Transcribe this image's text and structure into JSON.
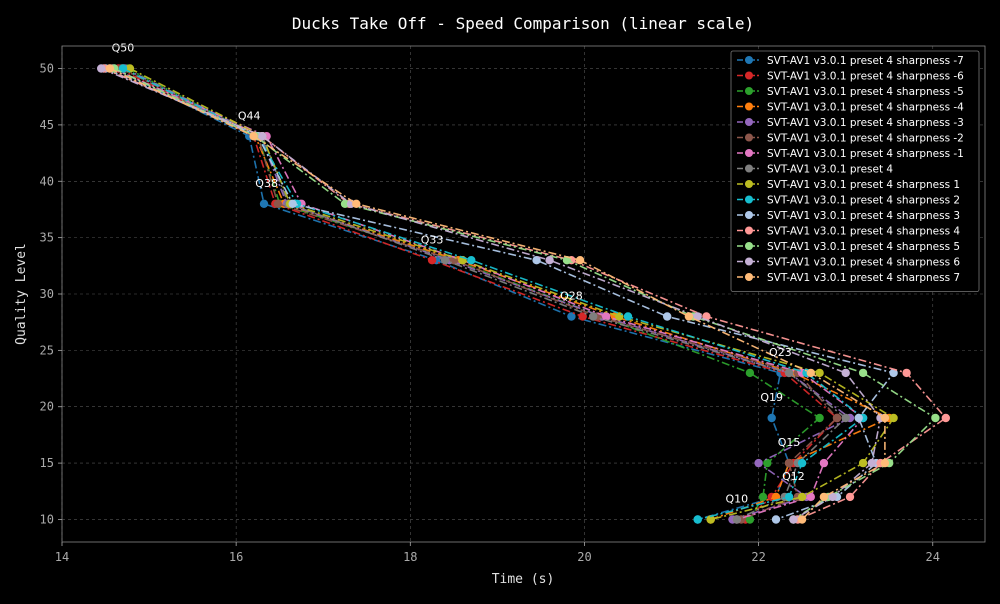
{
  "chart_data": {
    "type": "line",
    "title": "Ducks Take Off - Speed Comparison (linear scale)",
    "xlabel": "Time (s)",
    "ylabel": "Quality Level",
    "xlim": [
      14.0,
      24.6
    ],
    "ylim": [
      8.0,
      52.0
    ],
    "xticks": [
      14,
      16,
      18,
      20,
      22,
      24
    ],
    "yticks": [
      10,
      15,
      20,
      25,
      30,
      35,
      40,
      45,
      50
    ],
    "grid": true,
    "legend_position": "top-right",
    "quality_levels": [
      50,
      44,
      38,
      33,
      28,
      23,
      19,
      15,
      12,
      10
    ],
    "annotations": [
      {
        "text": "Q50",
        "x": 14.7,
        "y": 51.5
      },
      {
        "text": "Q44",
        "x": 16.15,
        "y": 45.5
      },
      {
        "text": "Q38",
        "x": 16.35,
        "y": 39.5
      },
      {
        "text": "Q33",
        "x": 18.25,
        "y": 34.5
      },
      {
        "text": "Q28",
        "x": 19.85,
        "y": 29.5
      },
      {
        "text": "Q23",
        "x": 22.25,
        "y": 24.5
      },
      {
        "text": "Q19",
        "x": 22.15,
        "y": 20.5
      },
      {
        "text": "Q15",
        "x": 22.35,
        "y": 16.5
      },
      {
        "text": "Q12",
        "x": 22.4,
        "y": 13.5
      },
      {
        "text": "Q10",
        "x": 21.75,
        "y": 11.5
      }
    ],
    "series": [
      {
        "name": "SVT-AV1 v3.0.1 preset 4 sharpness -7",
        "color": "#1f77b4",
        "x": [
          14.6,
          16.15,
          16.32,
          18.3,
          19.85,
          22.25,
          22.15,
          22.35,
          22.2,
          21.3
        ]
      },
      {
        "name": "SVT-AV1 v3.0.1 preset 4 sharpness -6",
        "color": "#d62728",
        "x": [
          14.65,
          16.2,
          16.45,
          18.25,
          19.98,
          22.3,
          22.9,
          22.4,
          22.15,
          21.85
        ]
      },
      {
        "name": "SVT-AV1 v3.0.1 preset 4 sharpness -5",
        "color": "#2ca02c",
        "x": [
          14.75,
          16.25,
          16.5,
          18.5,
          20.2,
          21.9,
          22.7,
          22.1,
          22.05,
          21.9
        ]
      },
      {
        "name": "SVT-AV1 v3.0.1 preset 4 sharpness -4",
        "color": "#ff7f0e",
        "x": [
          14.7,
          16.22,
          16.55,
          18.55,
          20.35,
          22.4,
          23.5,
          22.35,
          22.2,
          21.45
        ]
      },
      {
        "name": "SVT-AV1 v3.0.1 preset 4 sharpness -3",
        "color": "#9467bd",
        "x": [
          14.72,
          16.28,
          16.58,
          18.45,
          20.2,
          22.35,
          23.05,
          22.0,
          22.55,
          21.7
        ]
      },
      {
        "name": "SVT-AV1 v3.0.1 preset 4 sharpness -2",
        "color": "#8c564b",
        "x": [
          14.68,
          16.25,
          16.48,
          18.5,
          20.15,
          22.45,
          22.9,
          22.35,
          22.45,
          21.8
        ]
      },
      {
        "name": "SVT-AV1 v3.0.1 preset 4 sharpness -1",
        "color": "#e377c2",
        "x": [
          14.58,
          16.35,
          16.75,
          18.6,
          20.25,
          22.5,
          23.2,
          22.75,
          22.6,
          21.75
        ]
      },
      {
        "name": "SVT-AV1 v3.0.1 preset 4",
        "color": "#7f7f7f",
        "x": [
          14.55,
          16.3,
          16.6,
          18.4,
          20.1,
          22.35,
          23.0,
          22.45,
          22.3,
          21.75
        ]
      },
      {
        "name": "SVT-AV1 v3.0.1 preset 4 sharpness 1",
        "color": "#bcbd22",
        "x": [
          14.78,
          16.3,
          16.62,
          18.6,
          20.4,
          22.7,
          23.55,
          23.2,
          22.5,
          21.45
        ]
      },
      {
        "name": "SVT-AV1 v3.0.1 preset 4 sharpness 2",
        "color": "#17becf",
        "x": [
          14.7,
          16.25,
          16.7,
          18.7,
          20.5,
          22.55,
          23.2,
          22.5,
          22.35,
          21.3
        ]
      },
      {
        "name": "SVT-AV1 v3.0.1 preset 4 sharpness 3",
        "color": "#aec7e8",
        "x": [
          14.5,
          16.25,
          16.65,
          19.45,
          20.95,
          23.55,
          23.15,
          23.35,
          22.9,
          22.2
        ]
      },
      {
        "name": "SVT-AV1 v3.0.1 preset 4 sharpness 4",
        "color": "#ff9896",
        "x": [
          14.48,
          16.3,
          17.3,
          19.85,
          21.4,
          23.7,
          24.15,
          23.4,
          23.05,
          22.45
        ]
      },
      {
        "name": "SVT-AV1 v3.0.1 preset 4 sharpness 5",
        "color": "#98df8a",
        "x": [
          14.6,
          16.22,
          17.25,
          19.8,
          21.25,
          23.2,
          24.03,
          23.5,
          22.8,
          22.4
        ]
      },
      {
        "name": "SVT-AV1 v3.0.1 preset 4 sharpness 6",
        "color": "#c5b0d5",
        "x": [
          14.45,
          16.3,
          17.32,
          19.6,
          21.3,
          23.0,
          23.4,
          23.3,
          22.85,
          22.4
        ]
      },
      {
        "name": "SVT-AV1 v3.0.1 preset 4 sharpness 7",
        "color": "#ffbb78",
        "x": [
          14.55,
          16.2,
          17.38,
          19.95,
          21.2,
          22.6,
          23.45,
          23.45,
          22.75,
          22.5
        ]
      }
    ]
  }
}
